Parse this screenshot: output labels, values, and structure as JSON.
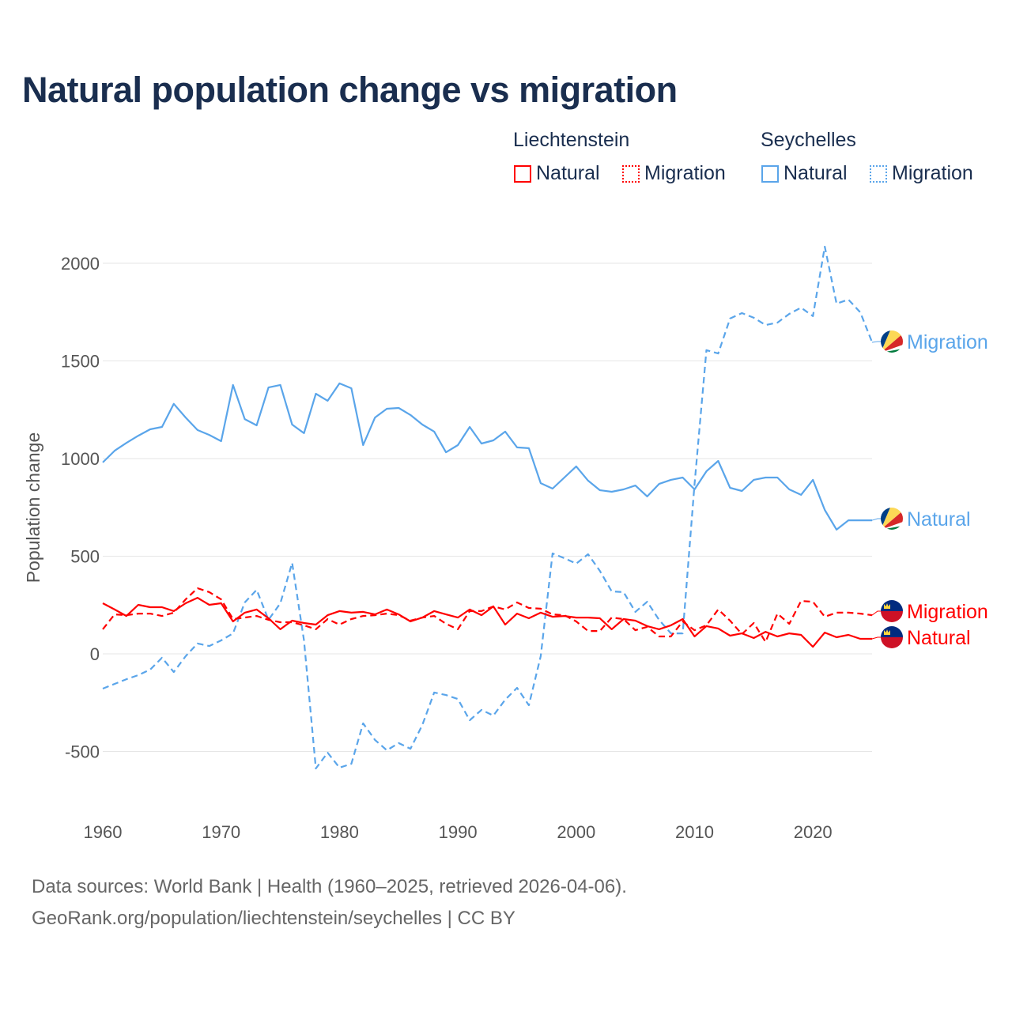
{
  "colors": {
    "liechtenstein": "#ff0000",
    "seychelles": "#5aa5ea",
    "title": "#1a2e4f"
  },
  "chart_data": {
    "type": "line",
    "title": "Natural population change vs migration",
    "xlabel": "",
    "ylabel": "Population change",
    "xlim": [
      1960,
      2025
    ],
    "ylim": [
      -700,
      2200
    ],
    "grid": true,
    "x_ticks": [
      1960,
      1970,
      1980,
      1990,
      2000,
      2010,
      2020
    ],
    "x_tick_labels": [
      "1960",
      "1970",
      "1980",
      "1990",
      "2000",
      "2010",
      "2020"
    ],
    "y_ticks": [
      -500,
      0,
      500,
      1000,
      1500,
      2000
    ],
    "y_tick_labels": [
      "-500",
      "0",
      "500",
      "1000",
      "1500",
      "2000"
    ],
    "legend": {
      "placement": "top-right",
      "groups": [
        {
          "country": "Liechtenstein",
          "items": [
            "Natural",
            "Migration"
          ]
        },
        {
          "country": "Seychelles",
          "items": [
            "Natural",
            "Migration"
          ]
        }
      ]
    },
    "x_start": 1960,
    "series": [
      {
        "name": "Seychelles Migration",
        "label": "Migration",
        "country": "seychelles",
        "style": "dashed",
        "values": [
          -178,
          -154,
          -130,
          -109,
          -81,
          -20,
          -93,
          -12,
          53,
          40,
          69,
          105,
          263,
          328,
          174,
          259,
          466,
          69,
          -587,
          -506,
          -583,
          -563,
          -356,
          -441,
          -494,
          -457,
          -486,
          -364,
          -198,
          -211,
          -231,
          -340,
          -287,
          -316,
          -235,
          -174,
          -263,
          -12,
          514,
          490,
          462,
          510,
          425,
          320,
          316,
          215,
          267,
          174,
          105,
          105,
          870,
          1555,
          1538,
          1717,
          1745,
          1721,
          1684,
          1696,
          1741,
          1773,
          1729,
          2085,
          1793,
          1814,
          1749,
          1595
        ]
      },
      {
        "name": "Seychelles Natural",
        "label": "Natural",
        "country": "seychelles",
        "style": "solid",
        "values": [
          980,
          1040,
          1080,
          1117,
          1150,
          1162,
          1280,
          1210,
          1146,
          1121,
          1089,
          1377,
          1202,
          1170,
          1364,
          1377,
          1174,
          1130,
          1332,
          1296,
          1385,
          1360,
          1069,
          1210,
          1255,
          1259,
          1223,
          1174,
          1138,
          1032,
          1069,
          1162,
          1077,
          1093,
          1138,
          1057,
          1053,
          874,
          846,
          903,
          960,
          887,
          838,
          830,
          842,
          862,
          806,
          870,
          891,
          903,
          842,
          935,
          988,
          850,
          834,
          891,
          903,
          903,
          842,
          814,
          891,
          737,
          636,
          684,
          684,
          684
        ]
      },
      {
        "name": "Liechtenstein Migration",
        "label": "Migration",
        "country": "liechtenstein",
        "style": "dashed",
        "values": [
          126,
          202,
          198,
          206,
          206,
          194,
          211,
          279,
          336,
          316,
          279,
          178,
          186,
          194,
          174,
          162,
          162,
          146,
          126,
          178,
          150,
          178,
          194,
          198,
          206,
          198,
          170,
          186,
          194,
          154,
          126,
          219,
          219,
          243,
          227,
          263,
          235,
          231,
          202,
          198,
          166,
          117,
          117,
          186,
          178,
          121,
          138,
          89,
          89,
          166,
          121,
          146,
          227,
          170,
          101,
          158,
          61,
          206,
          154,
          271,
          267,
          190,
          211,
          211,
          206,
          198
        ]
      },
      {
        "name": "Liechtenstein Natural",
        "label": "Natural",
        "country": "liechtenstein",
        "style": "solid",
        "values": [
          259,
          227,
          194,
          251,
          239,
          239,
          219,
          259,
          287,
          251,
          259,
          166,
          211,
          227,
          182,
          126,
          170,
          158,
          150,
          198,
          219,
          211,
          215,
          202,
          227,
          202,
          166,
          186,
          219,
          202,
          186,
          227,
          198,
          243,
          150,
          206,
          182,
          211,
          190,
          194,
          186,
          186,
          182,
          126,
          178,
          170,
          142,
          126,
          146,
          178,
          89,
          142,
          130,
          93,
          105,
          81,
          113,
          89,
          105,
          97,
          36,
          109,
          85,
          97,
          77,
          77
        ]
      }
    ]
  },
  "footer": {
    "line1": "Data sources: World Bank | Health (1960–2025, retrieved 2026-04-06).",
    "line2": "GeoRank.org/population/liechtenstein/seychelles | CC BY"
  }
}
